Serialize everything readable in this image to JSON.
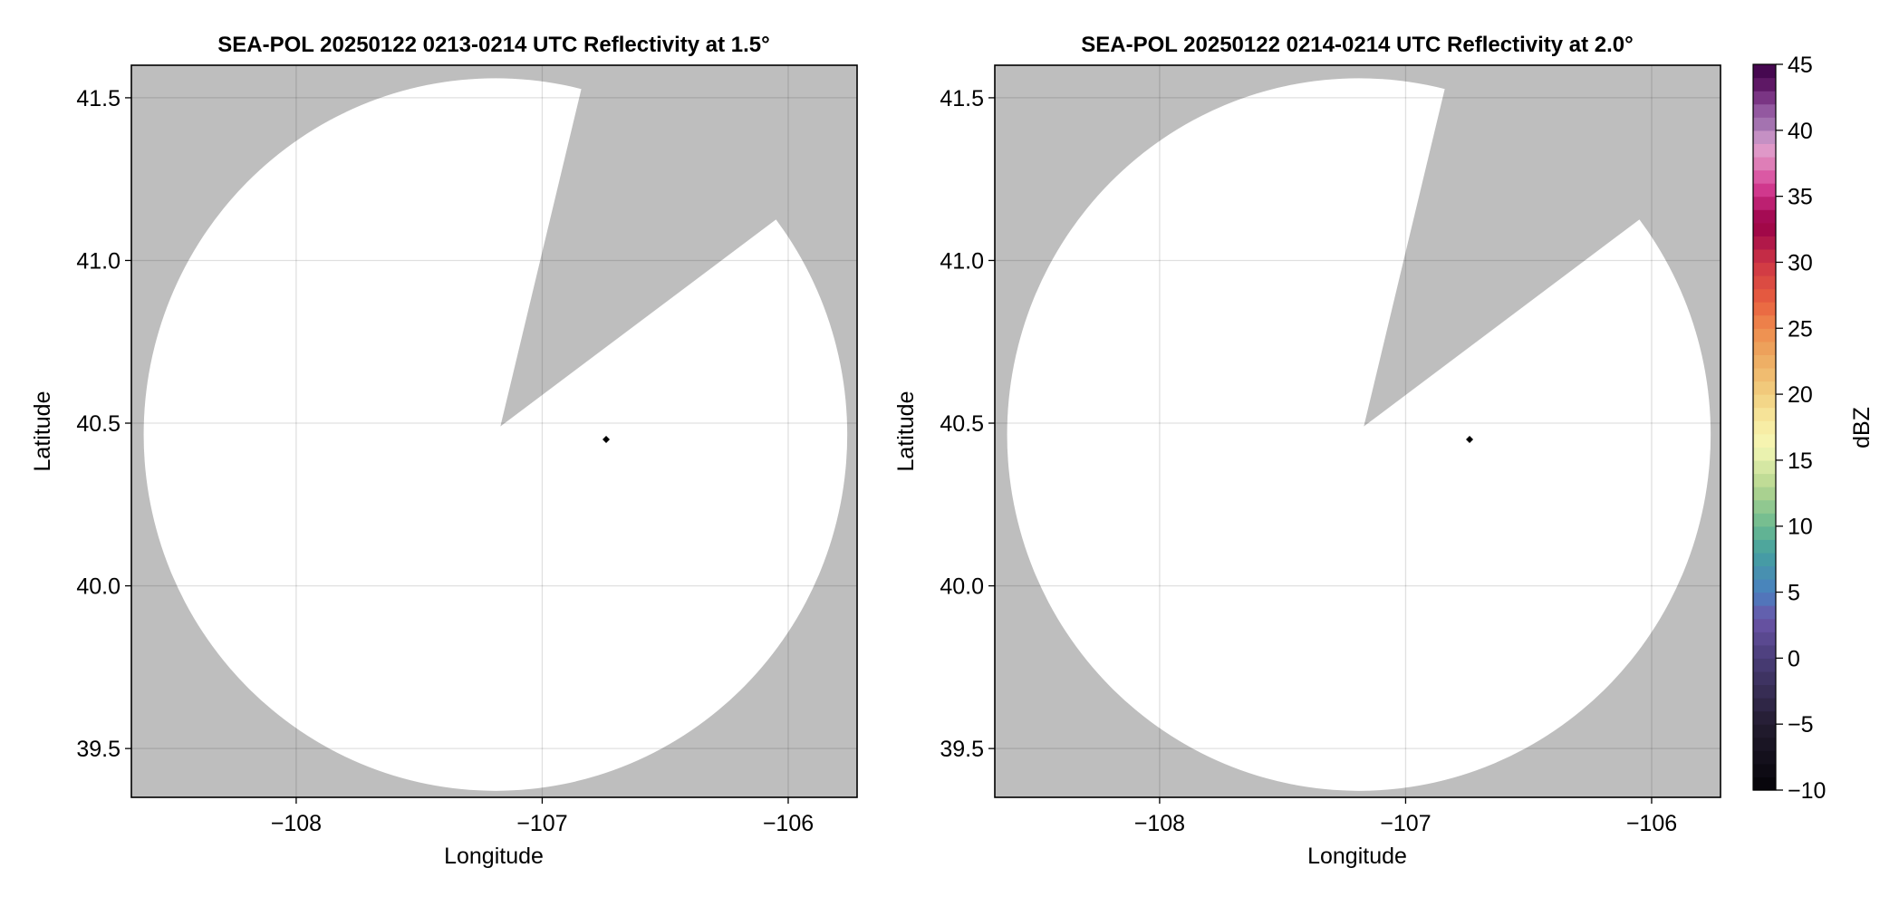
{
  "chart_data": [
    {
      "type": "heatmap",
      "title": "SEA-POL 20250122 0213-0214 UTC Reflectivity at 1.5°",
      "xlabel": "Longitude",
      "ylabel": "Latitude",
      "xlim": [
        -108.67,
        -105.72
      ],
      "ylim": [
        39.35,
        41.6
      ],
      "xticks": [
        -108,
        -107,
        -106
      ],
      "xtick_labels": [
        "−108",
        "−107",
        "−106"
      ],
      "yticks": [
        39.5,
        40.0,
        40.5,
        41.0,
        41.5
      ],
      "ytick_labels": [
        "39.5",
        "40.0",
        "40.5",
        "41.0",
        "41.5"
      ],
      "grid": true,
      "missing_color": "#bebebe",
      "coverage_color": "#ffffff",
      "coverage_center": [
        -107.19,
        40.465
      ],
      "coverage_radius_deg": [
        1.43,
        1.095
      ],
      "blocked_sector": {
        "apex": [
          -107.17,
          40.49
        ],
        "edge1": [
          -106.84,
          41.53
        ],
        "edge2": [
          -106.06,
          41.12
        ]
      },
      "marker": {
        "lon": -106.74,
        "lat": 40.45,
        "color": "#000000"
      }
    },
    {
      "type": "heatmap",
      "title": "SEA-POL 20250122 0214-0214 UTC Reflectivity at 2.0°",
      "xlabel": "Longitude",
      "ylabel": "Latitude",
      "xlim": [
        -108.67,
        -105.72
      ],
      "ylim": [
        39.35,
        41.6
      ],
      "xticks": [
        -108,
        -107,
        -106
      ],
      "xtick_labels": [
        "−108",
        "−107",
        "−106"
      ],
      "yticks": [
        39.5,
        40.0,
        40.5,
        41.0,
        41.5
      ],
      "ytick_labels": [
        "39.5",
        "40.0",
        "40.5",
        "41.0",
        "41.5"
      ],
      "grid": true,
      "missing_color": "#bebebe",
      "coverage_color": "#ffffff",
      "coverage_center": [
        -107.19,
        40.465
      ],
      "coverage_radius_deg": [
        1.43,
        1.095
      ],
      "blocked_sector": {
        "apex": [
          -107.17,
          40.49
        ],
        "edge1": [
          -106.84,
          41.53
        ],
        "edge2": [
          -106.06,
          41.12
        ]
      },
      "marker": {
        "lon": -106.74,
        "lat": 40.45,
        "color": "#000000"
      }
    }
  ],
  "colorbar": {
    "label": "dBZ",
    "range": [
      -10,
      45
    ],
    "step": 1,
    "ticks": [
      -10,
      -5,
      0,
      5,
      10,
      15,
      20,
      25,
      30,
      35,
      40,
      45
    ],
    "tick_labels": [
      "−10",
      "−5",
      "0",
      "5",
      "10",
      "15",
      "20",
      "25",
      "30",
      "35",
      "40",
      "45"
    ],
    "colormap": [
      [
        -10,
        "#050308"
      ],
      [
        -5,
        "#231c30"
      ],
      [
        0,
        "#4a3d78"
      ],
      [
        3,
        "#6a55a8"
      ],
      [
        5,
        "#4a7fc0"
      ],
      [
        8,
        "#45a0a0"
      ],
      [
        10,
        "#6ab990"
      ],
      [
        13,
        "#b5d690"
      ],
      [
        16,
        "#f5f7b5"
      ],
      [
        18,
        "#f7e9a0"
      ],
      [
        20,
        "#f2d080"
      ],
      [
        23,
        "#eda860"
      ],
      [
        25,
        "#ee8a4d"
      ],
      [
        27,
        "#e8603f"
      ],
      [
        30,
        "#cd3545"
      ],
      [
        32,
        "#a8104a"
      ],
      [
        33,
        "#9a0045"
      ],
      [
        35,
        "#c72a80"
      ],
      [
        36,
        "#d8469a"
      ],
      [
        38,
        "#e090c0"
      ],
      [
        39,
        "#dda0d0"
      ],
      [
        40,
        "#ac80b8"
      ],
      [
        42,
        "#8a4a98"
      ],
      [
        43,
        "#6a2070"
      ],
      [
        45,
        "#3a0045"
      ]
    ]
  }
}
